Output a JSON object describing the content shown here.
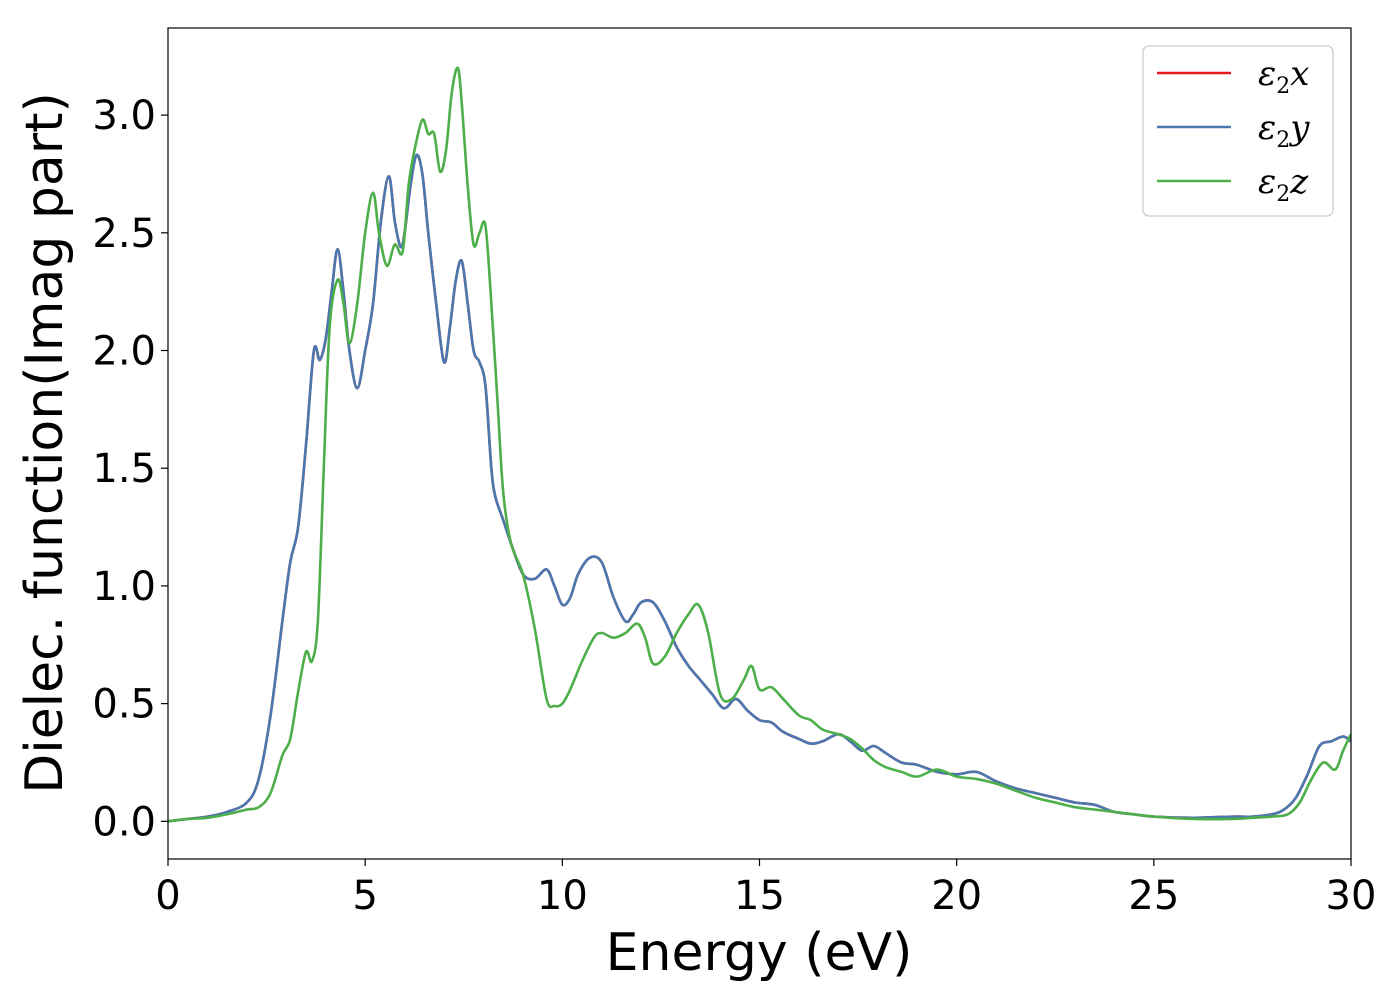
{
  "chart_data": {
    "type": "line",
    "title": "",
    "xlabel": "Energy (eV)",
    "ylabel": "Dielec. function(Imag part)",
    "xlim": [
      0,
      30
    ],
    "ylim": [
      -0.16,
      3.37
    ],
    "xticks": [
      "0",
      "5",
      "10",
      "15",
      "20",
      "25",
      "30"
    ],
    "yticks": [
      "0.0",
      "0.5",
      "1.0",
      "1.5",
      "2.0",
      "2.5",
      "3.0"
    ],
    "grid": false,
    "legend_position": "top-right",
    "legend": [
      {
        "base": "ε",
        "sub": "2",
        "var": "x",
        "color": "#e41a1c"
      },
      {
        "base": "ε",
        "sub": "2",
        "var": "y",
        "color": "#4a78b0"
      },
      {
        "base": "ε",
        "sub": "2",
        "var": "z",
        "color": "#4daf4a"
      }
    ],
    "series": [
      {
        "name": "ε2x",
        "color": "#e41a1c",
        "x": [
          0,
          0.5,
          1,
          1.5,
          2,
          2.3,
          2.6,
          2.9,
          3.1,
          3.3,
          3.5,
          3.7,
          3.85,
          4.0,
          4.15,
          4.3,
          4.45,
          4.6,
          4.8,
          5.0,
          5.2,
          5.4,
          5.6,
          5.75,
          5.9,
          6.0,
          6.15,
          6.3,
          6.45,
          6.6,
          6.8,
          7.0,
          7.15,
          7.3,
          7.45,
          7.6,
          7.75,
          7.9,
          8.05,
          8.2,
          8.3,
          8.5,
          8.7,
          9.0,
          9.3,
          9.6,
          9.8,
          10.0,
          10.2,
          10.4,
          10.7,
          11.0,
          11.3,
          11.6,
          11.8,
          12.0,
          12.3,
          12.6,
          12.9,
          13.2,
          13.5,
          13.8,
          14.1,
          14.4,
          14.7,
          15.0,
          15.3,
          15.6,
          16.0,
          16.3,
          16.6,
          17.0,
          17.3,
          17.6,
          17.9,
          18.2,
          18.6,
          19.0,
          19.5,
          20.0,
          20.5,
          21.0,
          21.5,
          22.0,
          22.5,
          23.0,
          23.5,
          24.0,
          24.5,
          25.0,
          26.0,
          27.0,
          27.5,
          28.0,
          28.3,
          28.6,
          28.9,
          29.2,
          29.5,
          29.8,
          30.0
        ],
        "y": [
          0.0,
          0.01,
          0.02,
          0.04,
          0.08,
          0.18,
          0.45,
          0.85,
          1.1,
          1.25,
          1.6,
          2.0,
          1.96,
          2.05,
          2.25,
          2.43,
          2.25,
          2.0,
          1.84,
          2.0,
          2.2,
          2.55,
          2.74,
          2.55,
          2.44,
          2.5,
          2.7,
          2.83,
          2.75,
          2.5,
          2.2,
          1.95,
          2.1,
          2.3,
          2.38,
          2.2,
          2.0,
          1.95,
          1.85,
          1.5,
          1.38,
          1.28,
          1.18,
          1.05,
          1.03,
          1.07,
          1.0,
          0.92,
          0.95,
          1.05,
          1.12,
          1.1,
          0.95,
          0.85,
          0.88,
          0.93,
          0.93,
          0.85,
          0.74,
          0.66,
          0.6,
          0.54,
          0.48,
          0.52,
          0.47,
          0.43,
          0.42,
          0.38,
          0.35,
          0.33,
          0.34,
          0.37,
          0.34,
          0.3,
          0.32,
          0.29,
          0.25,
          0.24,
          0.21,
          0.2,
          0.21,
          0.17,
          0.14,
          0.12,
          0.1,
          0.08,
          0.07,
          0.04,
          0.03,
          0.02,
          0.015,
          0.02,
          0.02,
          0.03,
          0.05,
          0.1,
          0.2,
          0.32,
          0.34,
          0.36,
          0.34
        ]
      },
      {
        "name": "ε2y",
        "color": "#4a78b0",
        "x": [
          0,
          0.5,
          1,
          1.5,
          2,
          2.3,
          2.6,
          2.9,
          3.1,
          3.3,
          3.5,
          3.7,
          3.85,
          4.0,
          4.15,
          4.3,
          4.45,
          4.6,
          4.8,
          5.0,
          5.2,
          5.4,
          5.6,
          5.75,
          5.9,
          6.0,
          6.15,
          6.3,
          6.45,
          6.6,
          6.8,
          7.0,
          7.15,
          7.3,
          7.45,
          7.6,
          7.75,
          7.9,
          8.05,
          8.2,
          8.3,
          8.5,
          8.7,
          9.0,
          9.3,
          9.6,
          9.8,
          10.0,
          10.2,
          10.4,
          10.7,
          11.0,
          11.3,
          11.6,
          11.8,
          12.0,
          12.3,
          12.6,
          12.9,
          13.2,
          13.5,
          13.8,
          14.1,
          14.4,
          14.7,
          15.0,
          15.3,
          15.6,
          16.0,
          16.3,
          16.6,
          17.0,
          17.3,
          17.6,
          17.9,
          18.2,
          18.6,
          19.0,
          19.5,
          20.0,
          20.5,
          21.0,
          21.5,
          22.0,
          22.5,
          23.0,
          23.5,
          24.0,
          24.5,
          25.0,
          26.0,
          27.0,
          27.5,
          28.0,
          28.3,
          28.6,
          28.9,
          29.2,
          29.5,
          29.8,
          30.0
        ],
        "y": [
          0.0,
          0.01,
          0.02,
          0.04,
          0.08,
          0.18,
          0.45,
          0.85,
          1.1,
          1.25,
          1.6,
          2.0,
          1.96,
          2.05,
          2.25,
          2.43,
          2.25,
          2.0,
          1.84,
          2.0,
          2.2,
          2.55,
          2.74,
          2.55,
          2.44,
          2.5,
          2.7,
          2.83,
          2.75,
          2.5,
          2.2,
          1.95,
          2.1,
          2.3,
          2.38,
          2.2,
          2.0,
          1.95,
          1.85,
          1.5,
          1.38,
          1.28,
          1.18,
          1.05,
          1.03,
          1.07,
          1.0,
          0.92,
          0.95,
          1.05,
          1.12,
          1.1,
          0.95,
          0.85,
          0.88,
          0.93,
          0.93,
          0.85,
          0.74,
          0.66,
          0.6,
          0.54,
          0.48,
          0.52,
          0.47,
          0.43,
          0.42,
          0.38,
          0.35,
          0.33,
          0.34,
          0.37,
          0.34,
          0.3,
          0.32,
          0.29,
          0.25,
          0.24,
          0.21,
          0.2,
          0.21,
          0.17,
          0.14,
          0.12,
          0.1,
          0.08,
          0.07,
          0.04,
          0.03,
          0.02,
          0.015,
          0.02,
          0.02,
          0.03,
          0.05,
          0.1,
          0.2,
          0.32,
          0.34,
          0.36,
          0.34
        ]
      },
      {
        "name": "ε2z",
        "color": "#4daf4a",
        "x": [
          0,
          0.5,
          1,
          1.5,
          2,
          2.3,
          2.6,
          2.9,
          3.1,
          3.3,
          3.5,
          3.65,
          3.8,
          3.95,
          4.1,
          4.3,
          4.45,
          4.6,
          4.8,
          5.0,
          5.2,
          5.35,
          5.55,
          5.75,
          5.95,
          6.1,
          6.25,
          6.45,
          6.6,
          6.75,
          6.9,
          7.05,
          7.2,
          7.35,
          7.45,
          7.6,
          7.75,
          7.9,
          8.05,
          8.2,
          8.35,
          8.5,
          8.7,
          9.0,
          9.3,
          9.6,
          9.8,
          10.0,
          10.2,
          10.5,
          10.8,
          11.0,
          11.3,
          11.6,
          11.9,
          12.1,
          12.3,
          12.6,
          12.9,
          13.2,
          13.45,
          13.7,
          14.0,
          14.3,
          14.6,
          14.8,
          15.0,
          15.3,
          15.6,
          16.0,
          16.3,
          16.6,
          17.0,
          17.3,
          17.6,
          17.9,
          18.2,
          18.6,
          19.0,
          19.5,
          20.0,
          20.5,
          21.0,
          21.5,
          22.0,
          22.5,
          23.0,
          23.5,
          24.0,
          25.0,
          26.0,
          27.0,
          27.5,
          28.0,
          28.4,
          28.7,
          29.0,
          29.3,
          29.6,
          29.8,
          30.0
        ],
        "y": [
          0.0,
          0.01,
          0.015,
          0.03,
          0.05,
          0.06,
          0.12,
          0.28,
          0.35,
          0.55,
          0.72,
          0.68,
          0.85,
          1.5,
          2.1,
          2.3,
          2.2,
          2.03,
          2.2,
          2.5,
          2.67,
          2.5,
          2.36,
          2.45,
          2.42,
          2.7,
          2.85,
          2.98,
          2.92,
          2.92,
          2.76,
          2.85,
          3.1,
          3.2,
          3.05,
          2.7,
          2.45,
          2.5,
          2.53,
          2.2,
          1.8,
          1.4,
          1.18,
          1.05,
          0.82,
          0.52,
          0.49,
          0.5,
          0.56,
          0.68,
          0.78,
          0.8,
          0.78,
          0.8,
          0.84,
          0.78,
          0.67,
          0.7,
          0.8,
          0.88,
          0.92,
          0.8,
          0.54,
          0.52,
          0.6,
          0.66,
          0.56,
          0.57,
          0.52,
          0.45,
          0.43,
          0.39,
          0.37,
          0.35,
          0.31,
          0.26,
          0.23,
          0.21,
          0.19,
          0.22,
          0.19,
          0.18,
          0.16,
          0.13,
          0.1,
          0.08,
          0.06,
          0.05,
          0.04,
          0.02,
          0.01,
          0.01,
          0.015,
          0.02,
          0.03,
          0.08,
          0.18,
          0.25,
          0.22,
          0.3,
          0.37
        ]
      }
    ]
  }
}
